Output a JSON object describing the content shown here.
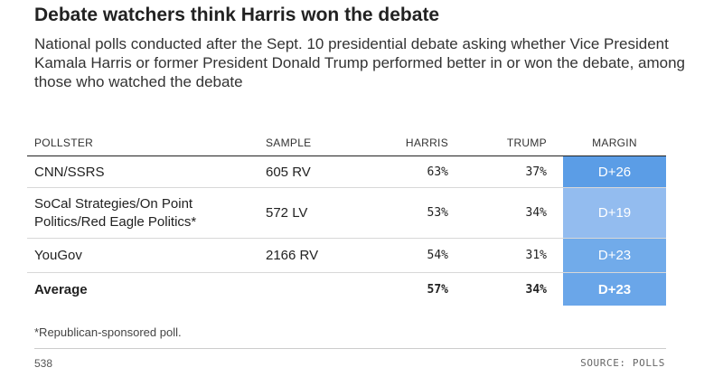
{
  "title": "Debate watchers think Harris won the debate",
  "subtitle": "National polls conducted after the Sept. 10 presidential debate asking whether Vice President Kamala Harris or former President Donald Trump performed better in or won the debate, among those who watched the debate",
  "chart_data": {
    "type": "table",
    "columns": [
      "POLLSTER",
      "SAMPLE",
      "HARRIS",
      "TRUMP",
      "MARGIN"
    ],
    "rows": [
      {
        "pollster": "CNN/SSRS",
        "sample": "605 RV",
        "harris": "63%",
        "trump": "37%",
        "margin": "D+26",
        "margin_color": "#5b9de6"
      },
      {
        "pollster": "SoCal Strategies/On Point Politics/Red Eagle Politics*",
        "sample": "572 LV",
        "harris": "53%",
        "trump": "34%",
        "margin": "D+19",
        "margin_color": "#93bcef"
      },
      {
        "pollster": "YouGov",
        "sample": "2166 RV",
        "harris": "54%",
        "trump": "31%",
        "margin": "D+23",
        "margin_color": "#71abea"
      }
    ],
    "average": {
      "label": "Average",
      "harris": "57%",
      "trump": "34%",
      "margin": "D+23",
      "margin_color": "#6aa6e9"
    }
  },
  "footnote": "*Republican-sponsored poll.",
  "brand": "538",
  "source": "SOURCE: POLLS"
}
